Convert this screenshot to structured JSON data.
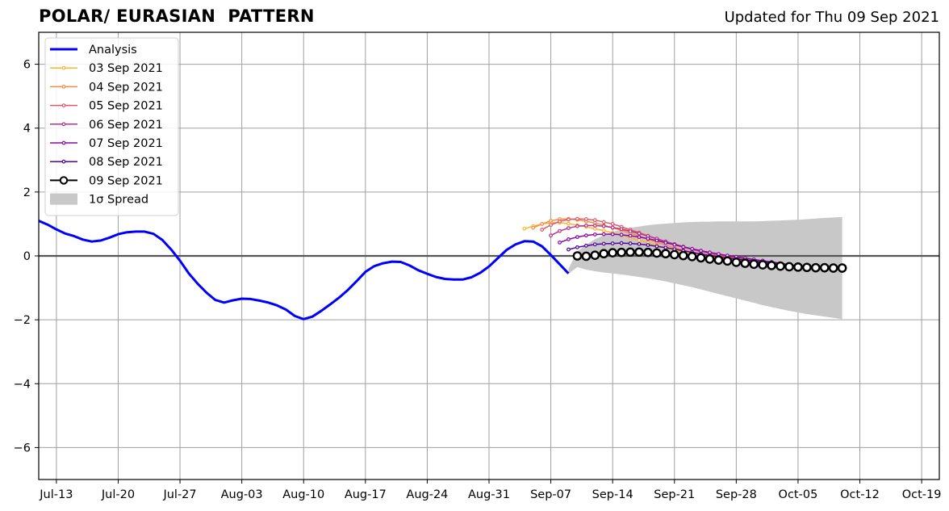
{
  "header": {
    "title": "POLAR/ EURASIAN  PATTERN",
    "updated": "Updated for Thu 09 Sep 2021"
  },
  "chart_data": {
    "type": "line",
    "title": "POLAR/ EURASIAN  PATTERN",
    "xlabel": "",
    "ylabel": "",
    "x_start": "2021-07-11",
    "x_end": "2021-10-21",
    "ylim": [
      -7,
      7
    ],
    "yticks": [
      -6,
      -4,
      -2,
      0,
      2,
      4,
      6
    ],
    "ytick_labels": [
      "−6",
      "−4",
      "−2",
      "0",
      "2",
      "4",
      "6"
    ],
    "xticks": [
      "Jul-13",
      "Jul-20",
      "Jul-27",
      "Aug-03",
      "Aug-10",
      "Aug-17",
      "Aug-24",
      "Aug-31",
      "Sep-07",
      "Sep-14",
      "Sep-21",
      "Sep-28",
      "Oct-05",
      "Oct-12",
      "Oct-19"
    ],
    "xtick_dates": [
      "2021-07-13",
      "2021-07-20",
      "2021-07-27",
      "2021-08-03",
      "2021-08-10",
      "2021-08-17",
      "2021-08-24",
      "2021-08-31",
      "2021-09-07",
      "2021-09-14",
      "2021-09-21",
      "2021-09-28",
      "2021-10-05",
      "2021-10-12",
      "2021-10-19"
    ],
    "grid": true,
    "legend_position": "top-left",
    "analysis": {
      "name": "Analysis",
      "color": "#0000ff",
      "start": "2021-07-11",
      "values": [
        1.1,
        0.98,
        0.83,
        0.7,
        0.62,
        0.51,
        0.45,
        0.48,
        0.57,
        0.68,
        0.74,
        0.76,
        0.76,
        0.69,
        0.5,
        0.2,
        -0.15,
        -0.55,
        -0.87,
        -1.15,
        -1.38,
        -1.46,
        -1.39,
        -1.34,
        -1.35,
        -1.4,
        -1.46,
        -1.55,
        -1.68,
        -1.88,
        -1.98,
        -1.9,
        -1.72,
        -1.52,
        -1.31,
        -1.07,
        -0.79,
        -0.5,
        -0.32,
        -0.23,
        -0.18,
        -0.19,
        -0.3,
        -0.45,
        -0.56,
        -0.66,
        -0.72,
        -0.74,
        -0.74,
        -0.67,
        -0.53,
        -0.33,
        -0.07,
        0.19,
        0.36,
        0.46,
        0.45,
        0.3,
        0.03,
        -0.26,
        -0.55
      ]
    },
    "forecasts": [
      {
        "name": "03 Sep 2021",
        "color": "#fdb42f",
        "start": "2021-09-04",
        "values": [
          0.85,
          0.93,
          1.0,
          1.04,
          1.04,
          1.01,
          0.96,
          0.91,
          0.85,
          0.79,
          0.72,
          0.65,
          0.57,
          0.49,
          0.41,
          0.33,
          0.25,
          0.18,
          0.11,
          0.05,
          0.0,
          -0.04,
          -0.08,
          -0.12,
          -0.15,
          -0.18,
          -0.21
        ]
      },
      {
        "name": "04 Sep 2021",
        "color": "#f68d45",
        "start": "2021-09-05",
        "values": [
          0.88,
          1.0,
          1.1,
          1.15,
          1.16,
          1.13,
          1.08,
          1.03,
          0.96,
          0.88,
          0.8,
          0.71,
          0.62,
          0.52,
          0.43,
          0.34,
          0.26,
          0.19,
          0.12,
          0.06,
          0.01,
          -0.03,
          -0.07,
          -0.11,
          -0.15,
          -0.18,
          -0.21
        ]
      },
      {
        "name": "05 Sep 2021",
        "color": "#db5c68",
        "start": "2021-09-06",
        "values": [
          0.82,
          0.97,
          1.08,
          1.14,
          1.16,
          1.15,
          1.12,
          1.06,
          1.0,
          0.91,
          0.82,
          0.73,
          0.63,
          0.53,
          0.44,
          0.35,
          0.27,
          0.2,
          0.13,
          0.07,
          0.02,
          -0.03,
          -0.07,
          -0.11,
          -0.15,
          -0.18,
          -0.22
        ]
      },
      {
        "name": "06 Sep 2021",
        "color": "#b83289",
        "start": "2021-09-07",
        "values": [
          0.64,
          0.78,
          0.87,
          0.93,
          0.95,
          0.95,
          0.93,
          0.89,
          0.84,
          0.77,
          0.7,
          0.62,
          0.54,
          0.45,
          0.37,
          0.29,
          0.22,
          0.16,
          0.1,
          0.05,
          0.0,
          -0.04,
          -0.08,
          -0.12,
          -0.16,
          -0.2
        ]
      },
      {
        "name": "07 Sep 2021",
        "color": "#8b0aa5",
        "start": "2021-09-08",
        "values": [
          0.42,
          0.52,
          0.59,
          0.64,
          0.67,
          0.68,
          0.68,
          0.66,
          0.63,
          0.59,
          0.54,
          0.48,
          0.41,
          0.35,
          0.28,
          0.22,
          0.16,
          0.11,
          0.06,
          0.01,
          -0.03,
          -0.07,
          -0.11,
          -0.15,
          -0.19,
          -0.23,
          -0.27
        ]
      },
      {
        "name": "08 Sep 2021",
        "color": "#5302a3",
        "start": "2021-09-09",
        "values": [
          0.2,
          0.27,
          0.32,
          0.36,
          0.38,
          0.39,
          0.4,
          0.39,
          0.37,
          0.34,
          0.3,
          0.26,
          0.21,
          0.16,
          0.11,
          0.06,
          0.01,
          -0.03,
          -0.07,
          -0.1,
          -0.13,
          -0.16,
          -0.19,
          -0.22,
          -0.25,
          -0.28,
          -0.31,
          -0.33
        ]
      },
      {
        "name": "09 Sep 2021",
        "color": "#000000",
        "start": "2021-09-10",
        "markers": "open-circle",
        "values": [
          0.0,
          -0.01,
          0.02,
          0.07,
          0.1,
          0.11,
          0.12,
          0.12,
          0.11,
          0.09,
          0.07,
          0.04,
          0.01,
          -0.02,
          -0.06,
          -0.1,
          -0.13,
          -0.16,
          -0.2,
          -0.23,
          -0.26,
          -0.28,
          -0.3,
          -0.32,
          -0.34,
          -0.35,
          -0.36,
          -0.37,
          -0.37,
          -0.38,
          -0.38
        ]
      }
    ],
    "spread": {
      "name": "1σ Spread",
      "color": "#c8c8c8",
      "start": "2021-09-09",
      "upper": [
        -0.4,
        0.14,
        0.35,
        0.52,
        0.65,
        0.75,
        0.82,
        0.88,
        0.92,
        0.96,
        0.99,
        1.01,
        1.03,
        1.05,
        1.06,
        1.07,
        1.07,
        1.08,
        1.08,
        1.08,
        1.08,
        1.08,
        1.09,
        1.1,
        1.11,
        1.12,
        1.13,
        1.15,
        1.17,
        1.19,
        1.2,
        1.22
      ],
      "lower": [
        -0.56,
        -0.35,
        -0.43,
        -0.48,
        -0.52,
        -0.55,
        -0.58,
        -0.62,
        -0.66,
        -0.7,
        -0.75,
        -0.8,
        -0.86,
        -0.92,
        -0.98,
        -1.05,
        -1.12,
        -1.19,
        -1.26,
        -1.33,
        -1.4,
        -1.47,
        -1.54,
        -1.6,
        -1.66,
        -1.72,
        -1.77,
        -1.82,
        -1.86,
        -1.9,
        -1.94,
        -1.98
      ]
    }
  }
}
